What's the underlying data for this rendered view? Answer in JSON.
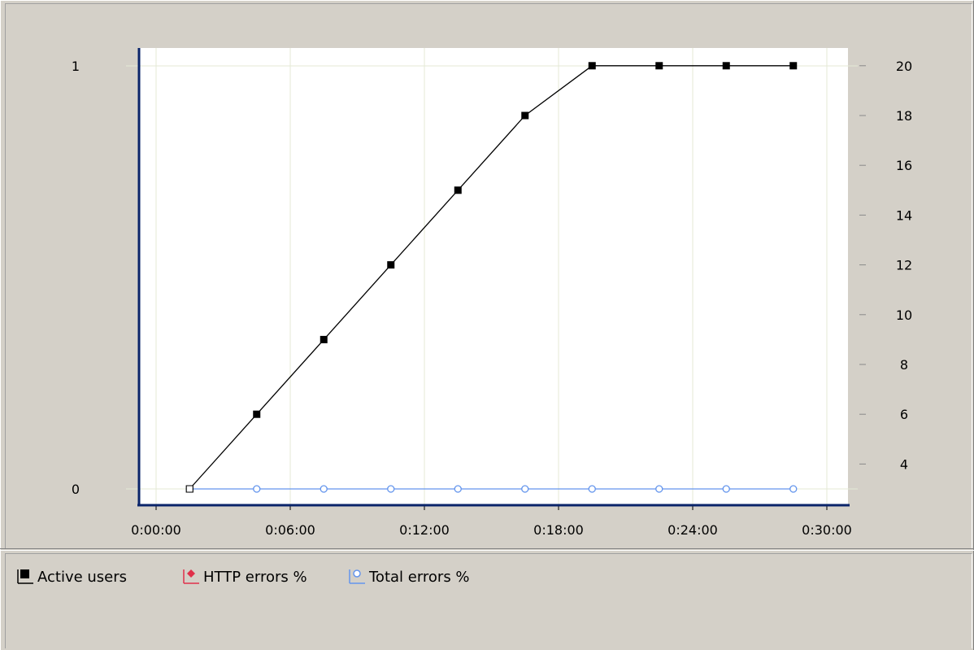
{
  "chart_data": {
    "type": "line",
    "x_tick_labels": [
      "0:00:00",
      "0:06:00",
      "0:12:00",
      "0:18:00",
      "0:24:00",
      "0:30:00"
    ],
    "xlim_minutes": [
      0,
      30
    ],
    "left_axis": {
      "tick_labels": [
        "0",
        "1"
      ],
      "ylim": [
        0,
        1
      ]
    },
    "right_axis": {
      "tick_labels": [
        "4",
        "6",
        "8",
        "10",
        "12",
        "14",
        "16",
        "18",
        "20"
      ],
      "ylim": [
        3,
        20
      ]
    },
    "grid": true,
    "legend_position": "bottom",
    "series": [
      {
        "name": "Active users",
        "axis": "right",
        "color": "#000000",
        "marker": "filled-square",
        "x": [
          "0:01:30",
          "0:04:30",
          "0:07:30",
          "0:10:30",
          "0:13:30",
          "0:16:30",
          "0:19:30",
          "0:22:30",
          "0:25:30",
          "0:28:30"
        ],
        "values": [
          3,
          6,
          9,
          12,
          15,
          18,
          20,
          20,
          20,
          20
        ]
      },
      {
        "name": "HTTP errors %",
        "axis": "left",
        "color": "#e0304a",
        "marker": "diamond",
        "x": [],
        "values": []
      },
      {
        "name": "Total errors %",
        "axis": "left",
        "color": "#6495ed",
        "marker": "hollow-circle",
        "x": [
          "0:01:30",
          "0:04:30",
          "0:07:30",
          "0:10:30",
          "0:13:30",
          "0:16:30",
          "0:19:30",
          "0:22:30",
          "0:25:30",
          "0:28:30"
        ],
        "values": [
          0,
          0,
          0,
          0,
          0,
          0,
          0,
          0,
          0,
          0
        ]
      }
    ]
  },
  "legend": {
    "items": [
      {
        "label": "Active users",
        "icon": "black-square-icon"
      },
      {
        "label": "HTTP errors %",
        "icon": "red-diamond-icon"
      },
      {
        "label": "Total errors %",
        "icon": "blue-circle-icon"
      }
    ]
  },
  "colors": {
    "panel_bg": "#d4d0c8",
    "plot_bg": "#ffffff",
    "grid": "#e4ead6",
    "axis": "#0a246a"
  }
}
